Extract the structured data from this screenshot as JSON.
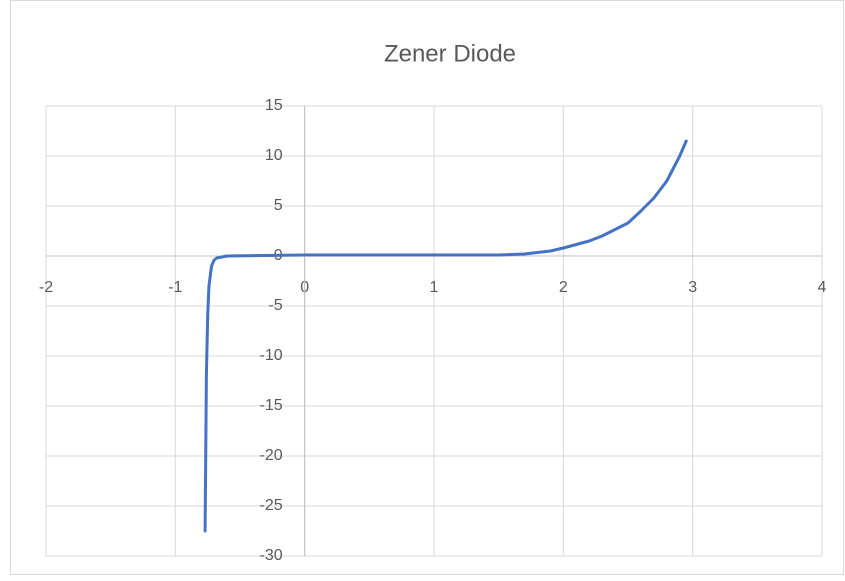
{
  "chart_data": {
    "type": "line",
    "title": "Zener Diode",
    "x": [
      -0.77,
      -0.765,
      -0.76,
      -0.75,
      -0.74,
      -0.73,
      -0.72,
      -0.7,
      -0.68,
      -0.6,
      0,
      1,
      1.5,
      1.7,
      1.9,
      2,
      2.2,
      2.3,
      2.5,
      2.6,
      2.7,
      2.8,
      2.9,
      2.95
    ],
    "series": [
      {
        "name": "Zener Diode",
        "color": "#4472c4",
        "values": [
          -27.5,
          -20,
          -12,
          -6,
          -3,
          -2,
          -1,
          -0.4,
          -0.2,
          0,
          0.1,
          0.1,
          0.1,
          0.2,
          0.5,
          0.8,
          1.5,
          2,
          3.3,
          4.5,
          5.8,
          7.5,
          10,
          11.5
        ]
      }
    ],
    "xlim": [
      -2,
      4
    ],
    "xticks": [
      -2,
      -1,
      0,
      1,
      2,
      3,
      4
    ],
    "ylim": [
      -30,
      15
    ],
    "yticks": [
      -30,
      -25,
      -20,
      -15,
      -10,
      -5,
      0,
      5,
      10,
      15
    ],
    "grid": true
  }
}
